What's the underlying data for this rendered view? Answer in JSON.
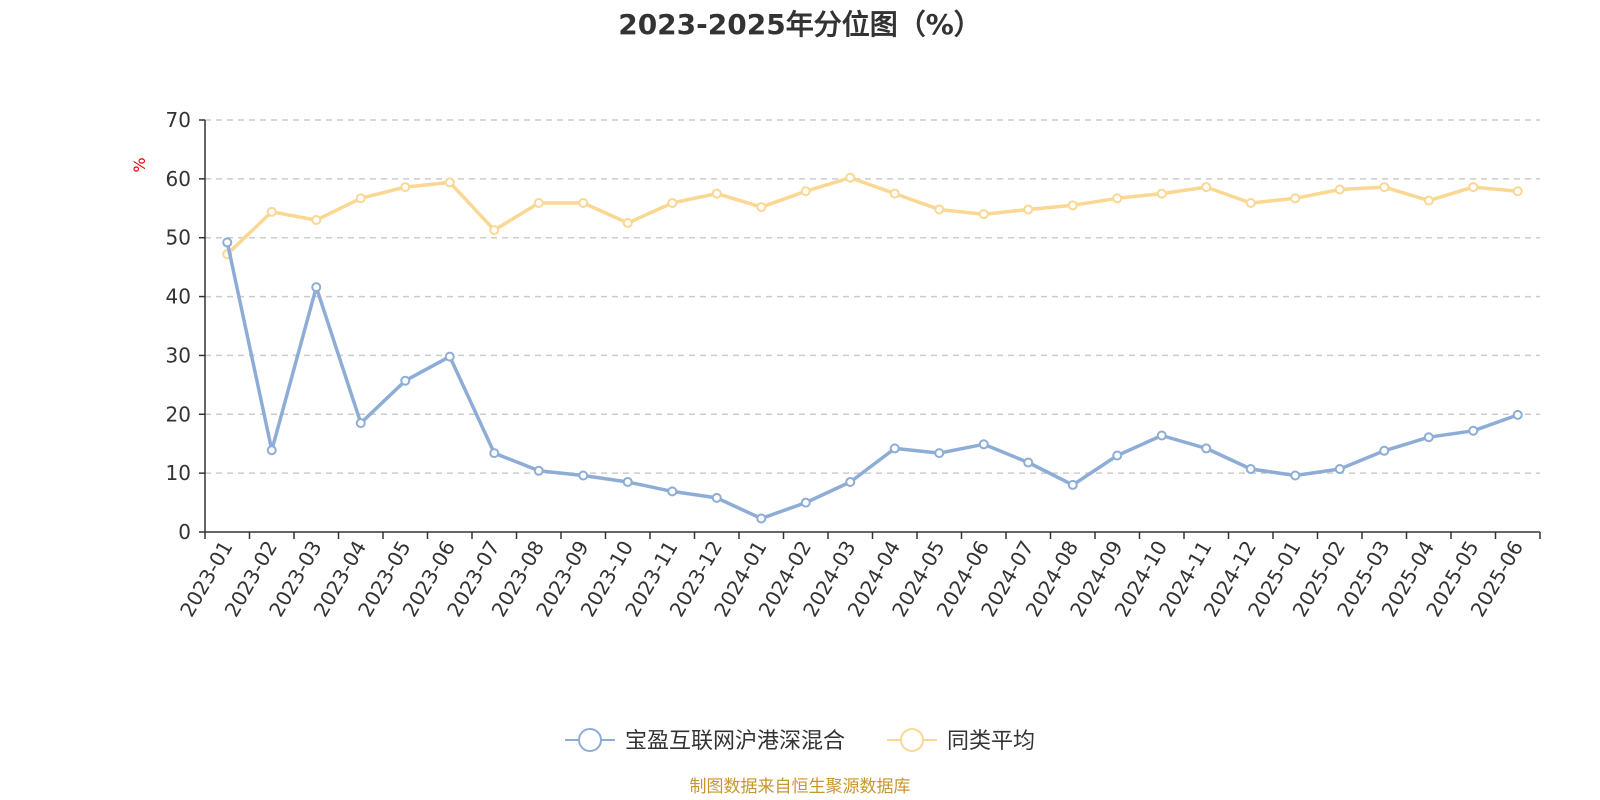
{
  "chart_data": {
    "type": "line",
    "title": "2023-2025年分位图（%）",
    "ylabel": "%",
    "xlabel": "",
    "ylim": [
      0,
      70
    ],
    "yticks": [
      0,
      10,
      20,
      30,
      40,
      50,
      60,
      70
    ],
    "grid": true,
    "legend_position": "bottom",
    "categories": [
      "2023-01",
      "2023-02",
      "2023-03",
      "2023-04",
      "2023-05",
      "2023-06",
      "2023-07",
      "2023-08",
      "2023-09",
      "2023-10",
      "2023-11",
      "2023-12",
      "2024-01",
      "2024-02",
      "2024-03",
      "2024-04",
      "2024-05",
      "2024-06",
      "2024-07",
      "2024-08",
      "2024-09",
      "2024-10",
      "2024-11",
      "2024-12",
      "2025-01",
      "2025-02",
      "2025-03",
      "2025-04",
      "2025-05",
      "2025-06"
    ],
    "series": [
      {
        "name": "宝盈互联网沪港深混合",
        "color": "#8eadd6",
        "values": [
          49.2,
          13.9,
          41.6,
          18.5,
          25.7,
          29.8,
          13.4,
          10.4,
          9.6,
          8.5,
          6.9,
          5.8,
          2.3,
          5.0,
          8.5,
          14.2,
          13.4,
          14.9,
          11.8,
          8.0,
          13.0,
          16.4,
          14.2,
          10.7,
          9.6,
          10.7,
          13.8,
          16.1,
          17.2,
          19.9
        ]
      },
      {
        "name": "同类平均",
        "color": "#fad792",
        "values": [
          47.2,
          54.4,
          53.0,
          56.7,
          58.6,
          59.4,
          51.3,
          55.9,
          55.9,
          52.5,
          55.9,
          57.5,
          55.2,
          57.9,
          60.2,
          57.5,
          54.8,
          54.0,
          54.8,
          55.5,
          56.7,
          57.5,
          58.6,
          55.9,
          56.7,
          58.2,
          58.6,
          56.3,
          58.6,
          57.9
        ]
      }
    ]
  },
  "source": "制图数据来自恒生聚源数据库"
}
